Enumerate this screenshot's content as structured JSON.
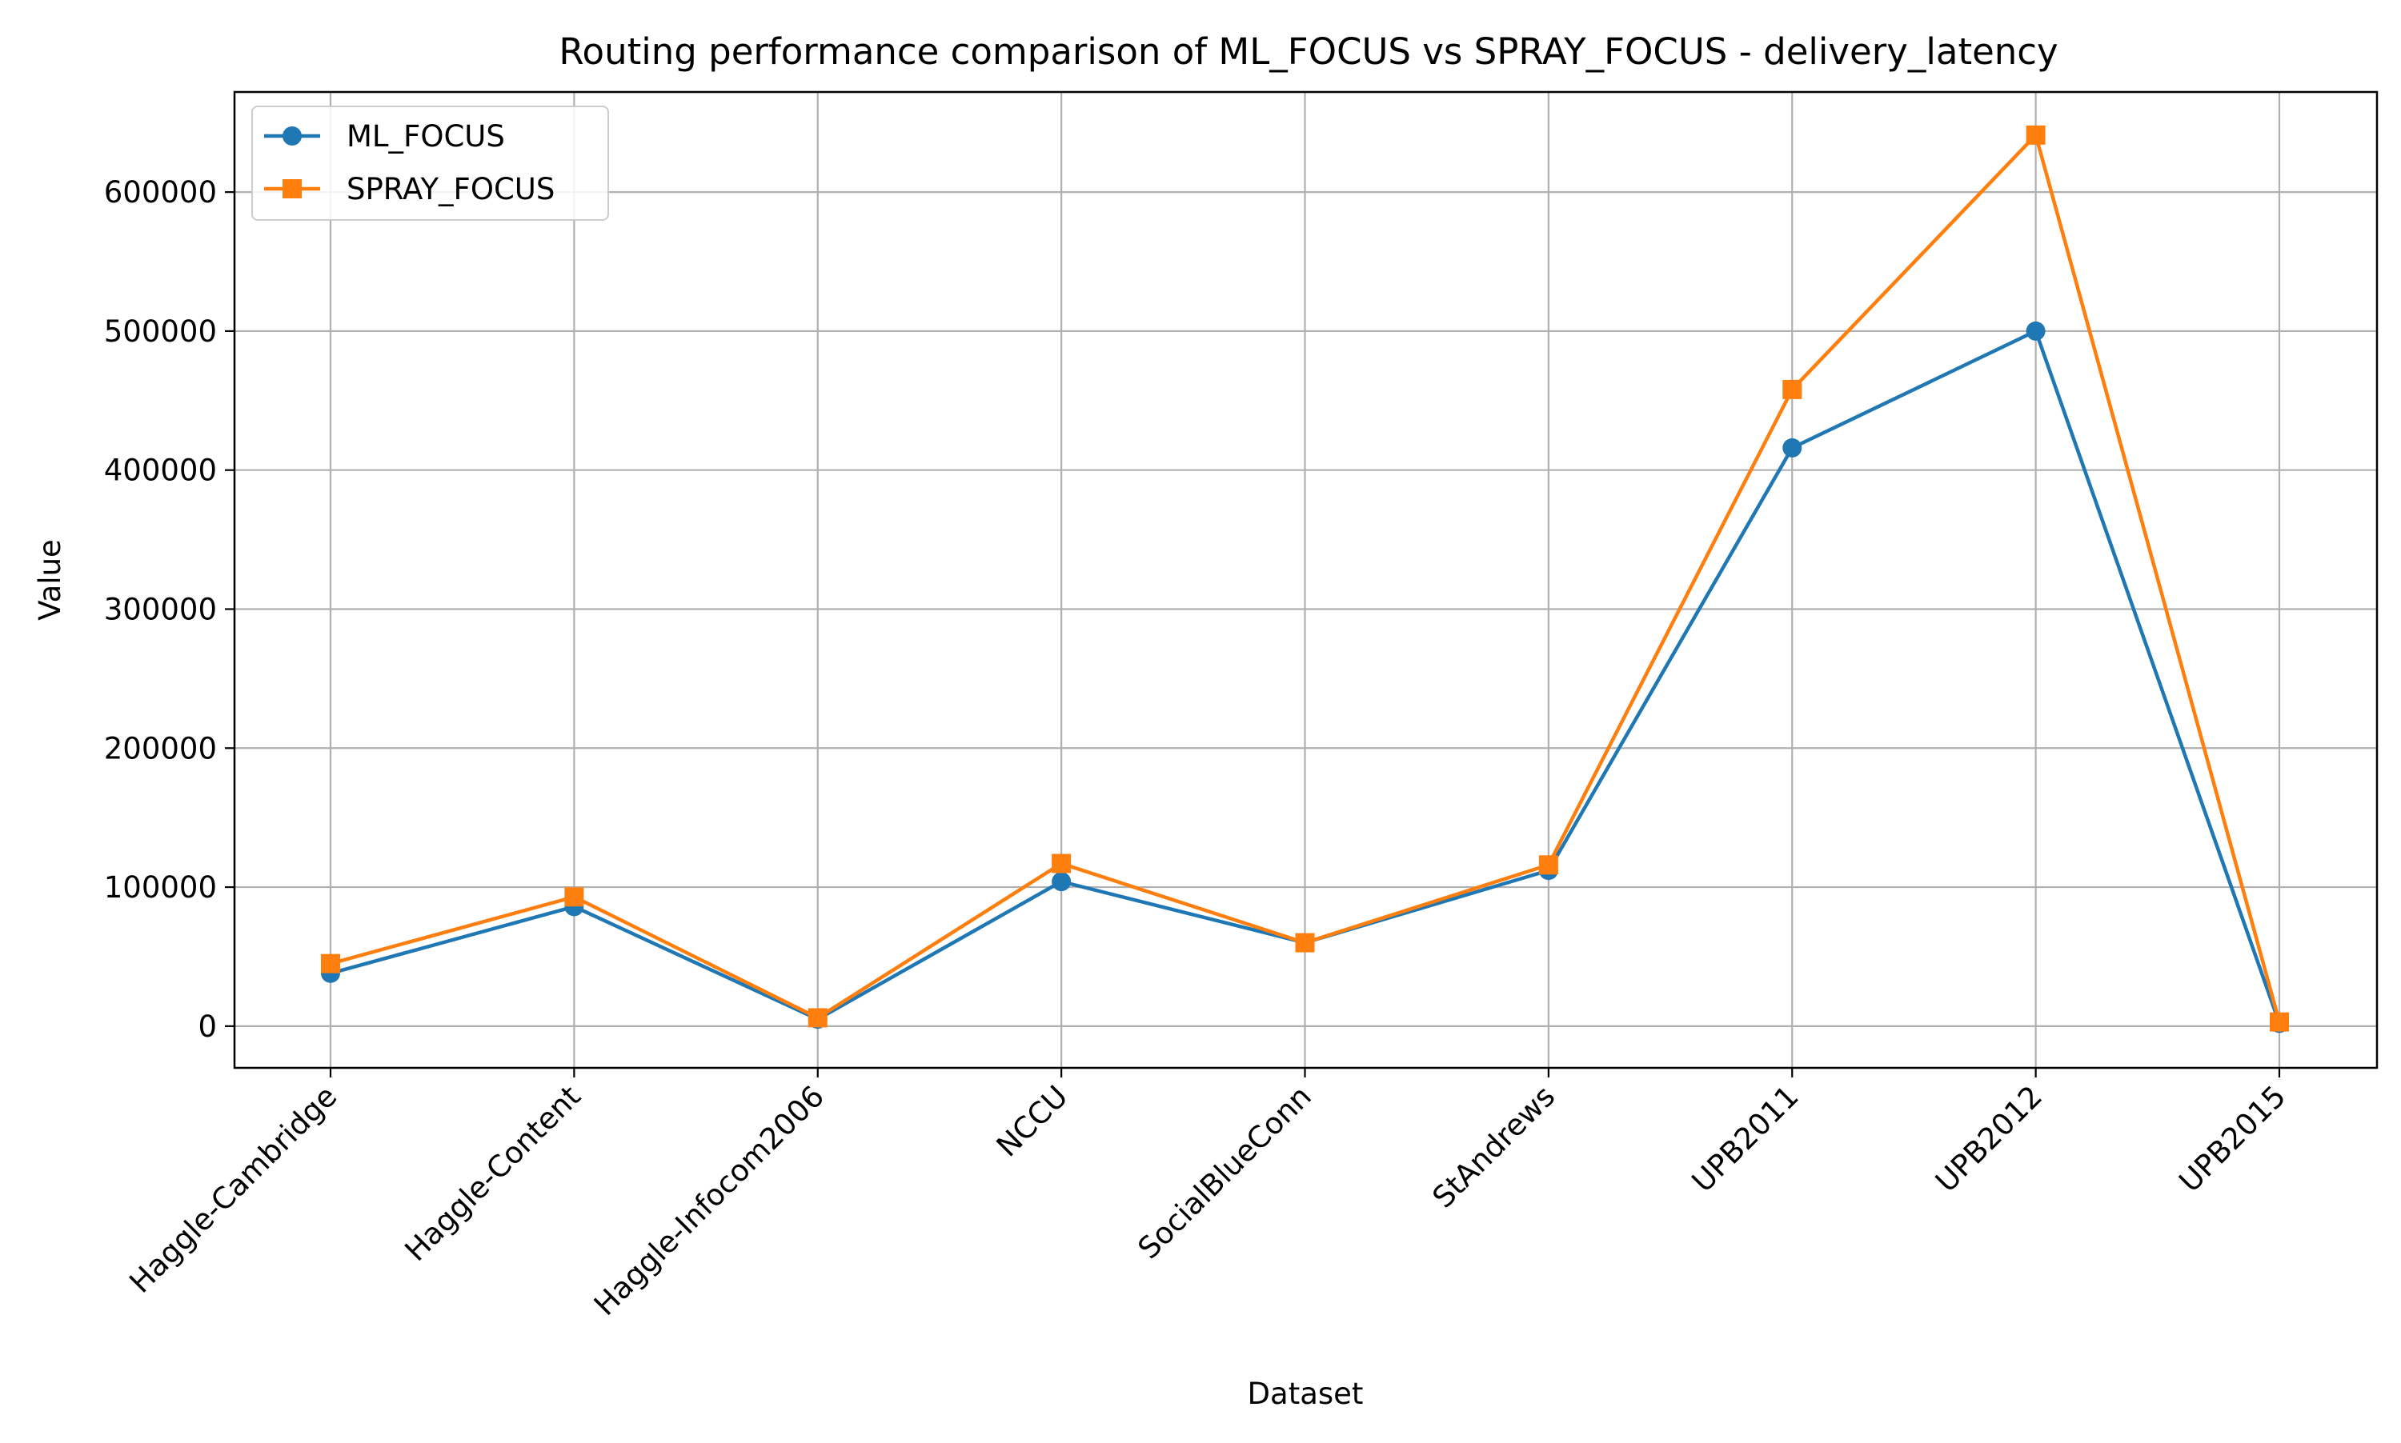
{
  "chart_data": {
    "type": "line",
    "title": "Routing performance comparison of ML_FOCUS vs SPRAY_FOCUS - delivery_latency",
    "xlabel": "Dataset",
    "ylabel": "Value",
    "categories": [
      "Haggle-Cambridge",
      "Haggle-Content",
      "Haggle-Infocom2006",
      "NCCU",
      "SocialBlueConn",
      "StAndrews",
      "UPB2011",
      "UPB2012",
      "UPB2015"
    ],
    "series": [
      {
        "name": "ML_FOCUS",
        "color": "#1f77b4",
        "marker": "circle",
        "values": [
          38000,
          86000,
          5000,
          104000,
          60000,
          112000,
          416000,
          500000,
          2000
        ]
      },
      {
        "name": "SPRAY_FOCUS",
        "color": "#ff7f0e",
        "marker": "square",
        "values": [
          45000,
          93000,
          6000,
          117000,
          60000,
          116000,
          458000,
          641000,
          3000
        ]
      }
    ],
    "ylim": [
      -30000,
      672000
    ],
    "yticks": [
      0,
      100000,
      200000,
      300000,
      400000,
      500000,
      600000
    ],
    "ytick_labels": [
      "0",
      "100000",
      "200000",
      "300000",
      "400000",
      "500000",
      "600000"
    ],
    "grid": true,
    "legend_position": "top-left"
  }
}
